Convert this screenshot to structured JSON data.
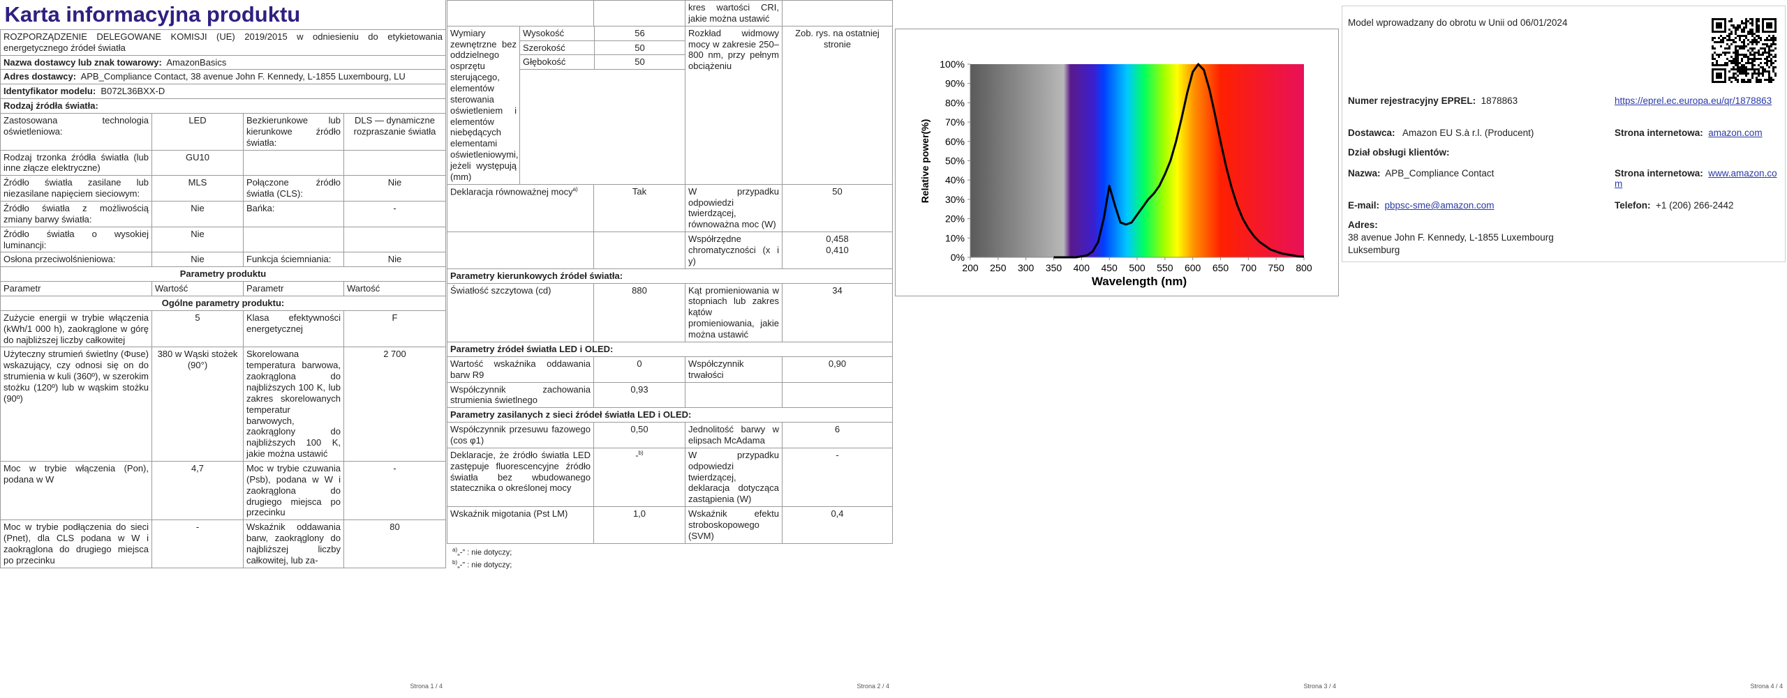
{
  "page1": {
    "title": "Karta informacyjna produktu",
    "regulation": "ROZPORZĄDZENIE DELEGOWANE KOMISJI (UE) 2019/2015 w odniesieniu do etykietowania energetycznego źródeł światła",
    "info": [
      {
        "label": "Nazwa dostawcy lub znak towarowy:",
        "value": "AmazonBasics"
      },
      {
        "label": "Adres dostawcy:",
        "value": "APB_Compliance Contact, 38 avenue John F. Kennedy, L-1855 Luxembourg, LU"
      },
      {
        "label": "Identyfikator modelu:",
        "value": "B072L36BXX-D"
      }
    ],
    "source_heading": "Rodzaj źródła światła:",
    "source_rows": [
      [
        "Zastosowana technologia oświetleniowa:",
        "LED",
        "Bezkierunkowe lub kierunkowe źródło światła:",
        "DLS — dynamiczne rozpraszanie światła"
      ],
      [
        "Rodzaj trzonka źródła światła (lub inne złącze elektryczne)",
        "GU10"
      ],
      [
        "Źródło światła zasilane lub niezasilane napięciem sieciowym:",
        "MLS",
        "Połączone źródło światła (CLS):",
        "Nie"
      ],
      [
        "Źródło światła z możliwością zmiany barwy światła:",
        "Nie",
        "Bańka:",
        "-"
      ],
      [
        "Źródło światła o wysokiej luminancji:",
        "Nie"
      ],
      [
        "Osłona przeciwolśnieniowa:",
        "Nie",
        "Funkcja ściemniania:",
        "Nie"
      ]
    ],
    "params_heading": "Parametry produktu",
    "params_header": [
      "Parametr",
      "Wartość",
      "Parametr",
      "Wartość"
    ],
    "general_heading": "Ogólne parametry produktu:",
    "param_rows": [
      [
        "Zużycie energii w trybie włączenia (kWh/1 000 h), zaokrąglone w górę do najbliższej liczby całkowitej",
        "5",
        "Klasa efektywności energetycznej",
        "F"
      ],
      [
        "Użyteczny strumień świetlny (Φuse) wskazujący, czy odnosi się on do strumienia w kuli (360º), w szerokim stożku (120º) lub w wąskim stożku (90º)",
        "380 w Wąski stożek (90°)",
        "Skorelowana temperatura barwowa, zaokrąglona do najbliższych 100 K, lub zakres skorelowanych temperatur barwowych, zaokrąglony do najbliższych 100 K, jakie można ustawić",
        "2 700"
      ],
      [
        "Moc w trybie włączenia (Pon), podana w W",
        "4,7",
        "Moc w trybie czuwania (Psb), podana w W i zaokrąglona do drugiego miejsca po przecinku",
        "-"
      ],
      [
        "Moc w trybie podłączenia do sieci (Pnet), dla CLS podana w W i zaokrąglona do drugiego miejsca po przecinku",
        "-",
        "Wskaźnik oddawania barw, zaokrąglony do najbliższej liczby całkowitej, lub za-",
        "80"
      ]
    ],
    "footer": "Strona 1 / 4"
  },
  "page2": {
    "continuation": "kres wartości CRI, jakie można ustawić",
    "dimensions": {
      "label": "Wymiary zewnętrzne bez oddzielnego osprzętu sterującego, elementów sterowania oświetleniem i elementów niebędących elementami oświetleniowymi, jeżeli występują (mm)",
      "items": [
        {
          "name": "Wysokość",
          "value": "56"
        },
        {
          "name": "Szerokość",
          "value": "50"
        },
        {
          "name": "Głębokość",
          "value": "50"
        }
      ],
      "spd_label": "Rozkład widmowy mocy w zakresie 250–800 nm, przy pełnym obciążeniu",
      "spd_value": "Zob. rys. na ostatniej stronie"
    },
    "rows": [
      {
        "cells": [
          {
            "text": "Deklaracja równoważnej mocy",
            "sup": "a)"
          },
          "Tak",
          "W przypadku odpowiedzi twierdzącej, równoważna moc (W)",
          "50"
        ]
      },
      {
        "cells": [
          null,
          null,
          "Współrzędne chromatyczności (x i y)",
          [
            "0,458",
            "0,410"
          ]
        ]
      },
      {
        "heading": "Parametry kierunkowych źródeł światła:"
      },
      {
        "cells": [
          "Światłość szczytowa (cd)",
          "880",
          "Kąt promieniowania w stopniach lub zakres kątów promieniowania, jakie można ustawić",
          "34"
        ]
      },
      {
        "heading": "Parametry źródeł światła LED i OLED:"
      },
      {
        "cells": [
          "Wartość wskaźnika oddawania barw R9",
          "0",
          "Współczynnik trwałości",
          "0,90"
        ]
      },
      {
        "cells": [
          "Współczynnik zachowania strumienia świetlnego",
          "0,93"
        ]
      },
      {
        "heading": "Parametry zasilanych z sieci źródeł światła LED i OLED:"
      },
      {
        "cells": [
          "Współczynnik przesuwu fazowego (cos φ1)",
          "0,50",
          "Jednolitość barwy w elipsach McAdama",
          "6"
        ]
      },
      {
        "cells": [
          "Deklaracje, że źródło światła LED zastępuje fluorescencyjne źródło światła bez wbudowanego statecznika o określonej mocy",
          {
            "text": "-",
            "sup": "b)"
          },
          "W przypadku odpowiedzi twierdzącej, deklaracja dotycząca zastąpienia (W)",
          "-"
        ]
      },
      {
        "cells": [
          "Wskaźnik migotania (Pst LM)",
          "1,0",
          "Wskaźnik efektu stroboskopowego (SVM)",
          "0,4"
        ]
      }
    ],
    "footnotes": [
      {
        "sup": "a)",
        "text": "„-” : nie dotyczy;"
      },
      {
        "sup": "b)",
        "text": "„-” : nie dotyczy;"
      }
    ],
    "footer": "Strona 2 / 4"
  },
  "chart_data": {
    "type": "line",
    "x_label": "Wavelength (nm)",
    "y_label": "Relative power(%)",
    "x": [
      350,
      360,
      370,
      380,
      390,
      400,
      410,
      420,
      430,
      440,
      450,
      460,
      470,
      480,
      490,
      500,
      510,
      520,
      530,
      540,
      550,
      560,
      570,
      580,
      590,
      600,
      610,
      620,
      630,
      640,
      650,
      660,
      670,
      680,
      690,
      700,
      710,
      720,
      730,
      740,
      750,
      760,
      770,
      780,
      790,
      800
    ],
    "values": [
      0,
      0,
      0,
      0,
      0,
      0.5,
      1,
      3,
      8,
      20,
      37,
      27,
      18,
      17,
      18,
      22,
      26,
      30,
      33,
      37,
      43,
      50,
      60,
      72,
      85,
      96,
      100,
      97,
      87,
      74,
      60,
      47,
      36,
      27,
      20,
      15,
      11,
      8,
      6,
      4,
      3,
      2,
      1.5,
      1,
      0.5,
      0.3
    ],
    "color": "#000000",
    "xlim": [
      200,
      800
    ],
    "xticks": [
      200,
      250,
      300,
      350,
      400,
      450,
      500,
      550,
      600,
      650,
      700,
      750,
      800
    ],
    "ylim": [
      0,
      100
    ],
    "yticks": [
      {
        "value": 0,
        "label": "0%"
      },
      {
        "value": 10,
        "label": "10%"
      },
      {
        "value": 20,
        "label": "20%"
      },
      {
        "value": 30,
        "label": "30%"
      },
      {
        "value": 40,
        "label": "40%"
      },
      {
        "value": 50,
        "label": "50%"
      },
      {
        "value": 60,
        "label": "60%"
      },
      {
        "value": 70,
        "label": "70%"
      },
      {
        "value": 80,
        "label": "80%"
      },
      {
        "value": 90,
        "label": "90%"
      },
      {
        "value": 100,
        "label": "100%"
      }
    ],
    "grid": false
  },
  "page3": {
    "footer": "Strona 3 / 4"
  },
  "page4": {
    "model_note": "Model wprowadzany do obrotu w Unii od 06/01/2024",
    "eprel_label": "Numer rejestracyjny EPREL:",
    "eprel_number": "1878863",
    "eprel_link": "https://eprel.ec.europa.eu/qr/1878863",
    "supplier_label": "Dostawca:",
    "supplier": "Amazon EU S.à r.l. (Producent)",
    "website_label": "Strona internetowa:",
    "website": "amazon.com",
    "service_heading": "Dział obsługi klientów:",
    "name_label": "Nazwa:",
    "name": "APB_Compliance Contact",
    "service_website_label": "Strona internetowa:",
    "service_website": "www.amazon.com",
    "email_label": "E-mail:",
    "email": "pbpsc-sme@amazon.com",
    "phone_label": "Telefon:",
    "phone": "+1 (206) 266-2442",
    "address_label": "Adres:",
    "address": [
      "38 avenue John F. Kennedy, L-1855 Luxembourg",
      "Luksemburg"
    ],
    "footer": "Strona 4 / 4"
  }
}
